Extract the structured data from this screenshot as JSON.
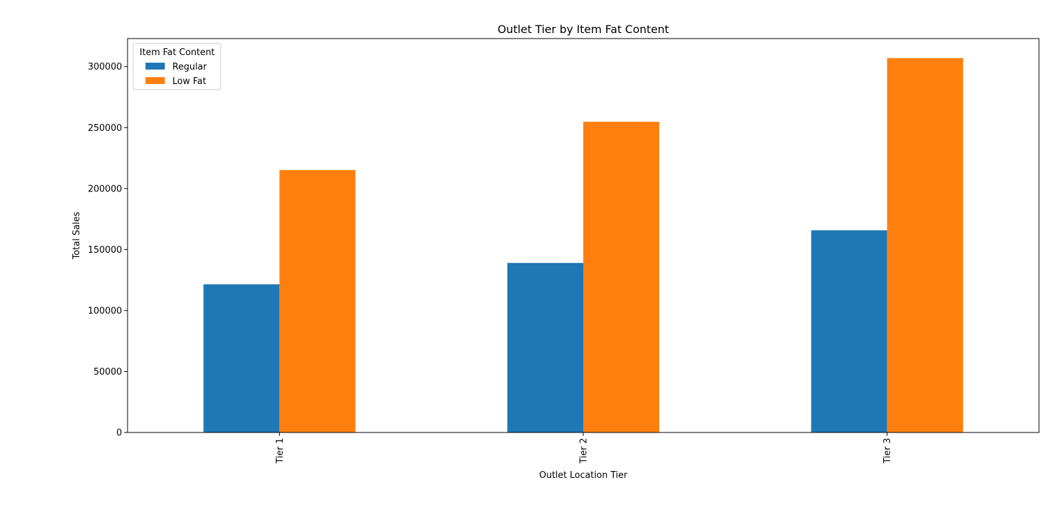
{
  "chart_data": {
    "type": "bar",
    "title": "Outlet Tier by Item Fat Content",
    "xlabel": "Outlet Location Tier",
    "ylabel": "Total Sales",
    "categories": [
      "Tier 1",
      "Tier 2",
      "Tier 3"
    ],
    "series": [
      {
        "name": "Regular",
        "color": "#1f77b4",
        "values": [
          121500,
          139000,
          165800
        ]
      },
      {
        "name": "Low Fat",
        "color": "#ff7f0e",
        "values": [
          215200,
          254800,
          307000
        ]
      }
    ],
    "ylim": [
      0,
      323000
    ],
    "yticks": [
      0,
      50000,
      100000,
      150000,
      200000,
      250000,
      300000
    ],
    "ytick_labels": [
      "0",
      "50000",
      "100000",
      "150000",
      "200000",
      "250000",
      "300000"
    ],
    "legend": {
      "title": "Item Fat Content",
      "placement": "top-left"
    },
    "grid": false
  }
}
